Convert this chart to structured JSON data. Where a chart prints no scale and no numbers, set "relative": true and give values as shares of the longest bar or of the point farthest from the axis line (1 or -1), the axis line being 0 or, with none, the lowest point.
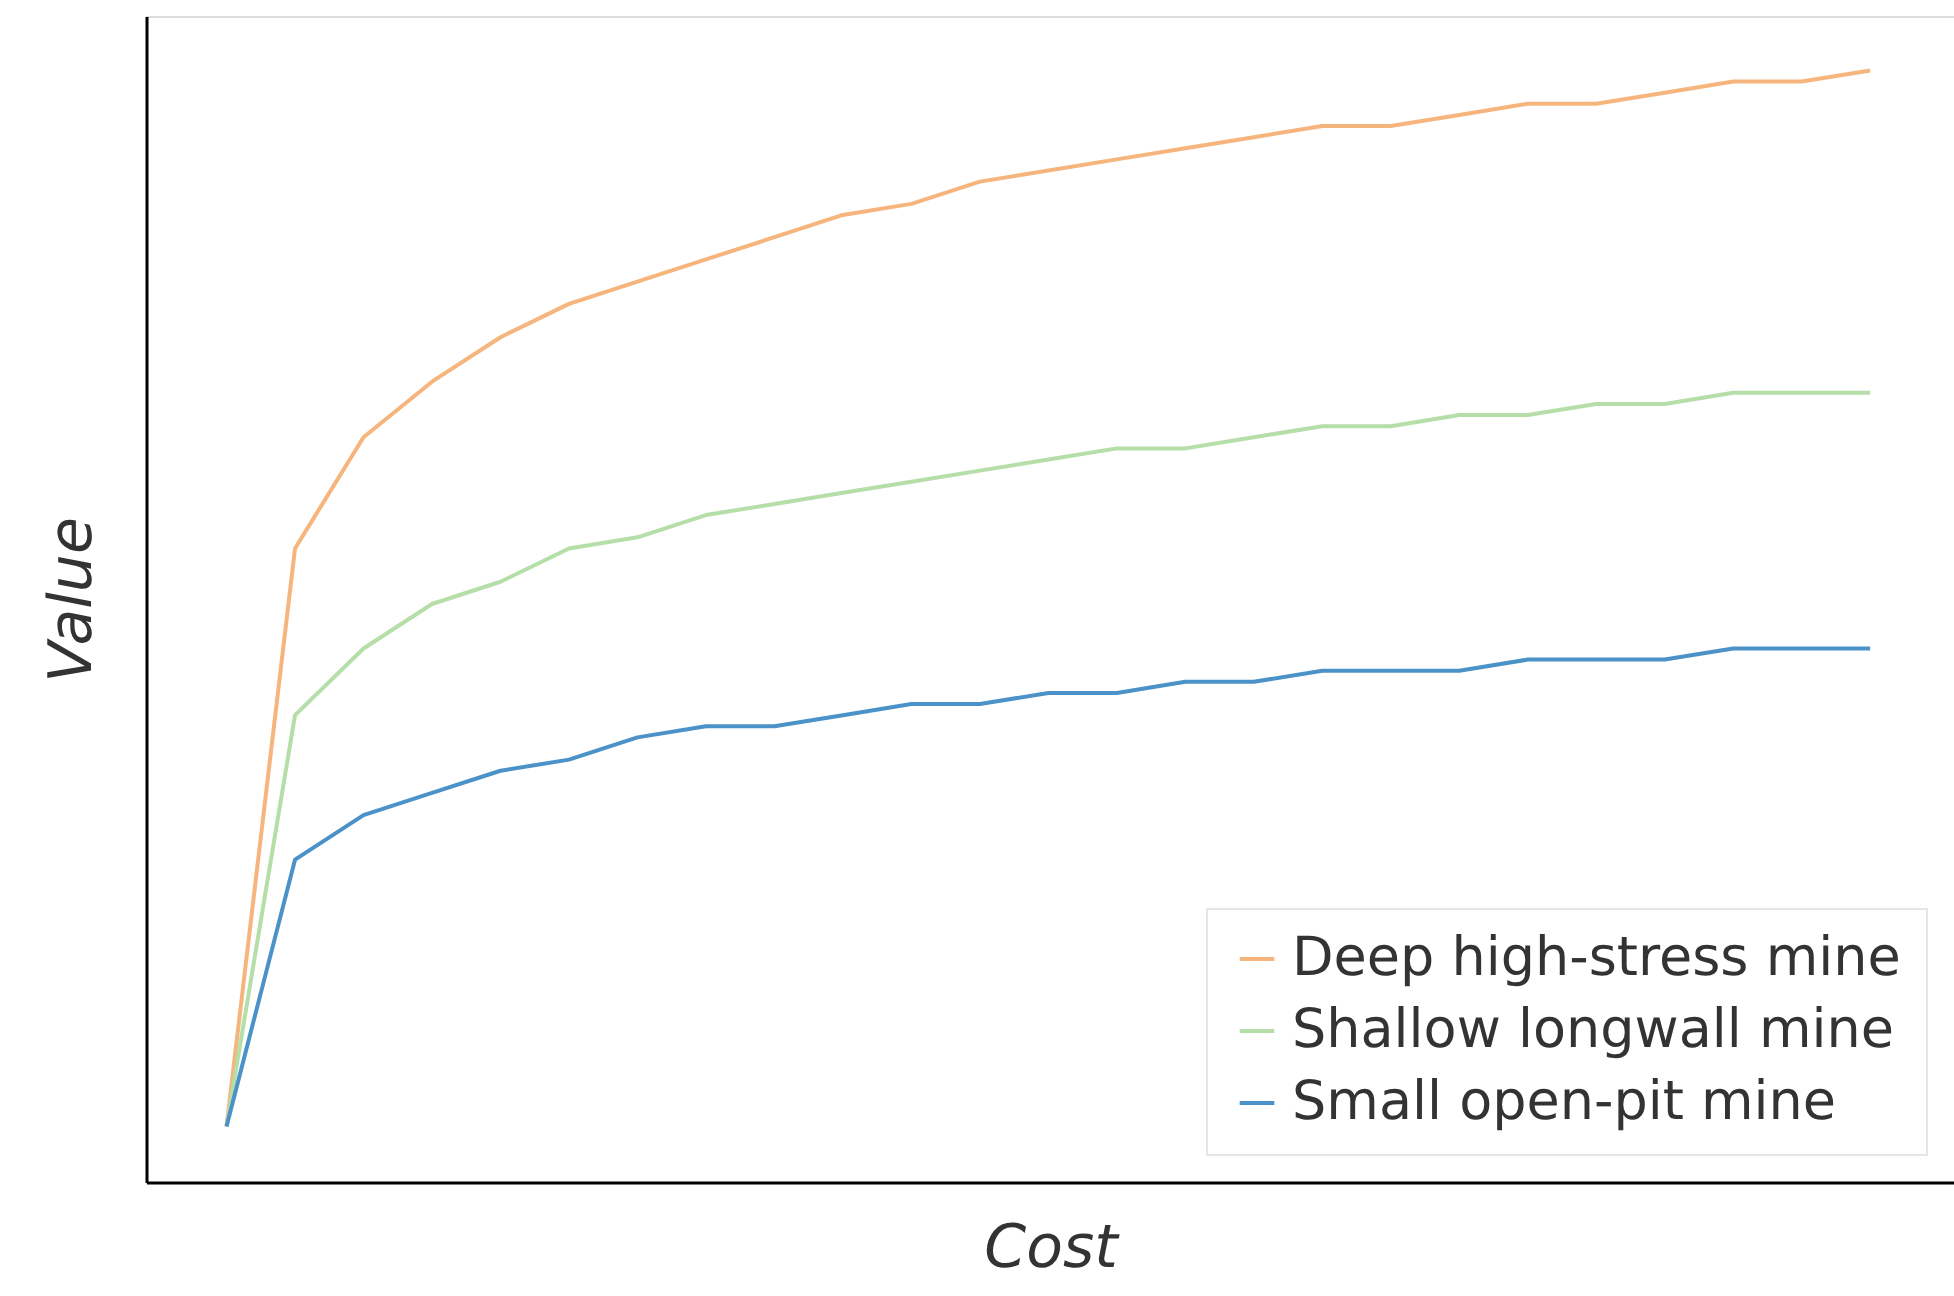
{
  "chart_data": {
    "type": "line",
    "xlabel": "Cost",
    "ylabel": "Value",
    "relative": true,
    "tick_labels": false,
    "legend": "bottom right",
    "grid": false,
    "categories": [
      null,
      null,
      null,
      null,
      null,
      null,
      null,
      null,
      null,
      null,
      null,
      null,
      null,
      null,
      null,
      null,
      null,
      null,
      null,
      null,
      null,
      null,
      null,
      null,
      null
    ],
    "series": [
      {
        "name": "Deep high-stress mine",
        "color": "#f6b57c",
        "values": [
          0.05,
          0.57,
          0.67,
          0.72,
          0.76,
          0.79,
          0.81,
          0.83,
          0.85,
          0.87,
          0.88,
          0.9,
          0.91,
          0.92,
          0.93,
          0.94,
          0.95,
          0.95,
          0.96,
          0.97,
          0.97,
          0.98,
          0.99,
          0.99,
          1
        ]
      },
      {
        "name": "Shallow longwall mine",
        "color": "#b5dea8",
        "values": [
          0.05,
          0.42,
          0.48,
          0.52,
          0.54,
          0.57,
          0.58,
          0.6,
          0.61,
          0.62,
          0.63,
          0.64,
          0.65,
          0.66,
          0.66,
          0.67,
          0.68,
          0.68,
          0.69,
          0.69,
          0.7,
          0.7,
          0.71,
          0.71,
          0.71
        ]
      },
      {
        "name": "Small open-pit mine",
        "color": "#4b92c8",
        "values": [
          0.05,
          0.29,
          0.33,
          0.35,
          0.37,
          0.38,
          0.4,
          0.41,
          0.41,
          0.42,
          0.43,
          0.43,
          0.44,
          0.44,
          0.45,
          0.45,
          0.46,
          0.46,
          0.46,
          0.47,
          0.47,
          0.47,
          0.48,
          0.48,
          0.48
        ]
      }
    ]
  }
}
